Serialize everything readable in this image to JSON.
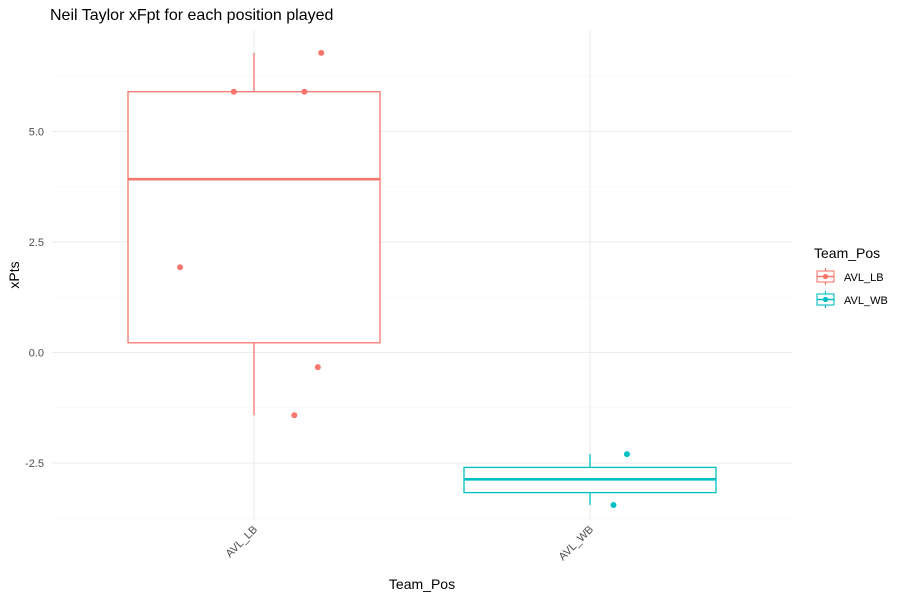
{
  "chart_data": {
    "type": "boxplot",
    "title": "Neil Taylor xFpt for each position played",
    "xlabel": "Team_Pos",
    "ylabel": "xPts",
    "categories": [
      "AVL_LB",
      "AVL_WB"
    ],
    "y_ticks": [
      -2.5,
      0.0,
      2.5,
      5.0
    ],
    "y_tick_labels": [
      "-2.5",
      "0.0",
      "2.5",
      "5.0"
    ],
    "ylim": [
      -3.75,
      7.5
    ],
    "grid": true,
    "legend": {
      "title": "Team_Pos",
      "placement": "right",
      "entries": [
        "AVL_LB",
        "AVL_WB"
      ]
    },
    "colors": {
      "AVL_LB": "#F8766D",
      "AVL_WB": "#00BFC4"
    },
    "boxes": [
      {
        "category": "AVL_LB",
        "whisker_low": -1.42,
        "q1": 0.22,
        "median": 3.92,
        "q3": 5.9,
        "whisker_high": 6.78
      },
      {
        "category": "AVL_WB",
        "whisker_low": -3.45,
        "q1": -3.17,
        "median": -2.87,
        "q3": -2.6,
        "whisker_high": -2.3
      }
    ],
    "points": [
      {
        "category": "AVL_LB",
        "jitter": -0.06,
        "y": 5.9
      },
      {
        "category": "AVL_LB",
        "jitter": 0.15,
        "y": 5.9
      },
      {
        "category": "AVL_LB",
        "jitter": 0.2,
        "y": 6.78
      },
      {
        "category": "AVL_LB",
        "jitter": -0.22,
        "y": 1.93
      },
      {
        "category": "AVL_LB",
        "jitter": 0.19,
        "y": -0.33
      },
      {
        "category": "AVL_LB",
        "jitter": 0.12,
        "y": -1.42
      },
      {
        "category": "AVL_WB",
        "jitter": 0.11,
        "y": -2.3
      },
      {
        "category": "AVL_WB",
        "jitter": 0.07,
        "y": -3.45
      }
    ]
  }
}
